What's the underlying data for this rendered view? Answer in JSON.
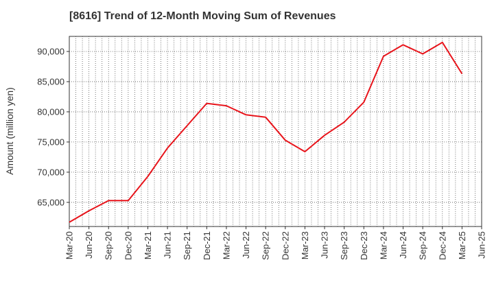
{
  "chart_data": {
    "type": "line",
    "title": "[8616]  Trend of 12-Month Moving Sum of Revenues",
    "xlabel": "",
    "ylabel": "Amount (million yen)",
    "ylim": [
      61000,
      92500
    ],
    "yticks": [
      65000,
      70000,
      75000,
      80000,
      85000,
      90000
    ],
    "ytick_labels": [
      "65,000",
      "70,000",
      "75,000",
      "80,000",
      "85,000",
      "90,000"
    ],
    "categories": [
      "Mar-20",
      "Jun-20",
      "Sep-20",
      "Dec-20",
      "Mar-21",
      "Jun-21",
      "Sep-21",
      "Dec-21",
      "Mar-22",
      "Jun-22",
      "Sep-22",
      "Dec-22",
      "Mar-23",
      "Jun-23",
      "Sep-23",
      "Dec-23",
      "Mar-24",
      "Jun-24",
      "Sep-24",
      "Dec-24",
      "Mar-25",
      "Jun-25"
    ],
    "grid": true,
    "series": [
      {
        "color": "#e8141b",
        "values": [
          61700,
          63600,
          65300,
          65300,
          69300,
          74000,
          77700,
          81400,
          81000,
          79500,
          79100,
          75300,
          73400,
          76100,
          78300,
          81600,
          89200,
          91100,
          89600,
          91500,
          86300,
          null
        ]
      }
    ]
  }
}
